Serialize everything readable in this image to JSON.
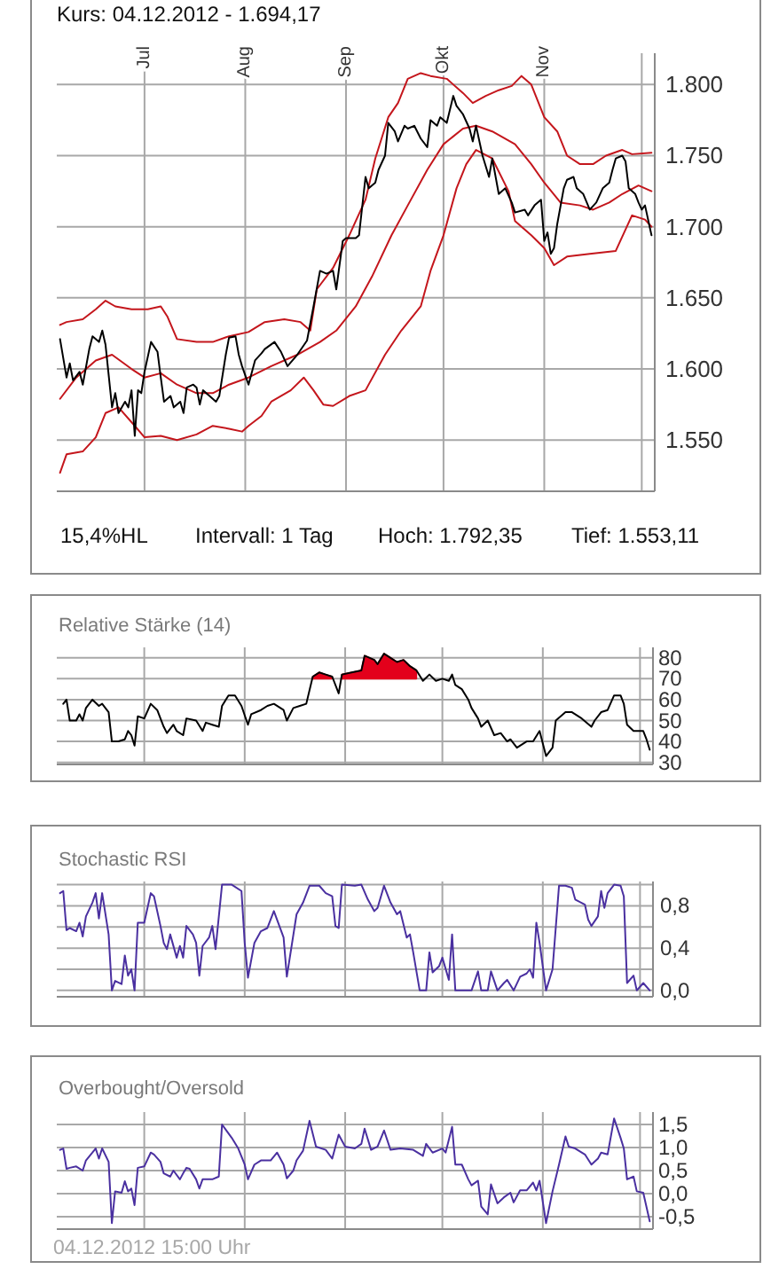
{
  "chart_data": [
    {
      "type": "line",
      "title": "Kurs: 04.12.2012 - 1.694,17",
      "xlim": [
        "2012-06-04",
        "2012-12-05"
      ],
      "xticks": [
        {
          "value": "2012-07-01",
          "label": "Jul"
        },
        {
          "value": "2012-08-01",
          "label": "Aug"
        },
        {
          "value": "2012-09-01",
          "label": "Sep"
        },
        {
          "value": "2012-10-01",
          "label": "Okt"
        },
        {
          "value": "2012-11-01",
          "label": "Nov"
        },
        {
          "value": "2012-12-01",
          "label": null
        }
      ],
      "ylim": [
        1514,
        1822
      ],
      "yticks": [
        {
          "value": 1550,
          "label": "1.550"
        },
        {
          "value": 1600,
          "label": "1.600"
        },
        {
          "value": 1650,
          "label": "1.650"
        },
        {
          "value": 1700,
          "label": "1.700"
        },
        {
          "value": 1750,
          "label": "1.750"
        },
        {
          "value": 1800,
          "label": "1.800"
        }
      ],
      "grid": true,
      "series": [
        {
          "color": "#c4161c",
          "x": [
            "2012-06-05",
            "2012-06-07",
            "2012-06-12",
            "2012-06-16",
            "2012-06-19",
            "2012-06-22",
            "2012-06-27",
            "2012-07-02",
            "2012-07-06",
            "2012-07-08",
            "2012-07-11",
            "2012-07-17",
            "2012-07-22",
            "2012-07-27",
            "2012-08-02",
            "2012-08-07",
            "2012-08-13",
            "2012-08-18",
            "2012-08-21",
            "2012-08-23",
            "2012-08-28",
            "2012-09-02",
            "2012-09-07",
            "2012-09-10",
            "2012-09-14",
            "2012-09-17",
            "2012-09-20",
            "2012-09-24",
            "2012-09-27",
            "2012-10-02",
            "2012-10-07",
            "2012-10-10",
            "2012-10-14",
            "2012-10-18",
            "2012-10-22",
            "2012-10-25",
            "2012-10-28",
            "2012-11-01",
            "2012-11-05",
            "2012-11-08",
            "2012-11-12",
            "2012-11-16",
            "2012-11-20",
            "2012-11-25",
            "2012-11-28",
            "2012-12-04"
          ],
          "values": [
            1631,
            1633,
            1635,
            1642,
            1648,
            1644,
            1642,
            1642,
            1644,
            1637,
            1621,
            1619,
            1619,
            1623,
            1626,
            1633,
            1635,
            1633,
            1627,
            1656,
            1671,
            1694,
            1719,
            1748,
            1777,
            1787,
            1804,
            1808,
            1806,
            1804,
            1794,
            1787,
            1792,
            1796,
            1799,
            1806,
            1800,
            1777,
            1767,
            1750,
            1744,
            1744,
            1750,
            1754,
            1751,
            1752
          ]
        },
        {
          "color": "#c4161c",
          "x": [
            "2012-06-05",
            "2012-06-10",
            "2012-06-16",
            "2012-06-21",
            "2012-06-27",
            "2012-07-01",
            "2012-07-06",
            "2012-07-11",
            "2012-07-17",
            "2012-07-22",
            "2012-07-27",
            "2012-08-02",
            "2012-08-09",
            "2012-08-17",
            "2012-08-24",
            "2012-08-29",
            "2012-09-04",
            "2012-09-09",
            "2012-09-15",
            "2012-09-20",
            "2012-09-26",
            "2012-10-01",
            "2012-10-07",
            "2012-10-11",
            "2012-10-16",
            "2012-10-23",
            "2012-10-28",
            "2012-11-01",
            "2012-11-06",
            "2012-11-12",
            "2012-11-16",
            "2012-11-21",
            "2012-11-25",
            "2012-11-30",
            "2012-12-04"
          ],
          "values": [
            1579,
            1594,
            1606,
            1610,
            1600,
            1594,
            1597,
            1589,
            1583,
            1583,
            1589,
            1594,
            1602,
            1610,
            1619,
            1627,
            1644,
            1665,
            1694,
            1715,
            1740,
            1758,
            1769,
            1771,
            1767,
            1758,
            1744,
            1731,
            1717,
            1715,
            1712,
            1717,
            1723,
            1729,
            1725
          ]
        },
        {
          "color": "#c4161c",
          "x": [
            "2012-06-05",
            "2012-06-07",
            "2012-06-12",
            "2012-06-16",
            "2012-06-19",
            "2012-06-23",
            "2012-06-28",
            "2012-07-01",
            "2012-07-06",
            "2012-07-11",
            "2012-07-17",
            "2012-07-22",
            "2012-07-27",
            "2012-07-31",
            "2012-08-02",
            "2012-08-06",
            "2012-08-09",
            "2012-08-15",
            "2012-08-19",
            "2012-08-22",
            "2012-08-25",
            "2012-08-28",
            "2012-09-02",
            "2012-09-07",
            "2012-09-13",
            "2012-09-18",
            "2012-09-24",
            "2012-09-27",
            "2012-10-01",
            "2012-10-05",
            "2012-10-08",
            "2012-10-11",
            "2012-10-16",
            "2012-10-21",
            "2012-10-23",
            "2012-10-28",
            "2012-11-01",
            "2012-11-04",
            "2012-11-08",
            "2012-11-15",
            "2012-11-23",
            "2012-11-26",
            "2012-11-28",
            "2012-12-02",
            "2012-12-04"
          ],
          "values": [
            1527,
            1540,
            1542,
            1552,
            1569,
            1573,
            1560,
            1552,
            1553,
            1550,
            1554,
            1560,
            1558,
            1556,
            1560,
            1567,
            1577,
            1585,
            1594,
            1585,
            1575,
            1574,
            1581,
            1585,
            1610,
            1627,
            1644,
            1669,
            1694,
            1727,
            1744,
            1754,
            1748,
            1725,
            1704,
            1694,
            1685,
            1673,
            1679,
            1681,
            1683,
            1698,
            1708,
            1705,
            1700
          ]
        },
        {
          "color": "#000000",
          "x": [
            "2012-06-05",
            "2012-06-07",
            "2012-06-08",
            "2012-06-09",
            "2012-06-11",
            "2012-06-12",
            "2012-06-14",
            "2012-06-15",
            "2012-06-17",
            "2012-06-18",
            "2012-06-19",
            "2012-06-21",
            "2012-06-22",
            "2012-06-23",
            "2012-06-25",
            "2012-06-26",
            "2012-06-27",
            "2012-06-28",
            "2012-06-29",
            "2012-06-30",
            "2012-07-01",
            "2012-07-03",
            "2012-07-05",
            "2012-07-06",
            "2012-07-07",
            "2012-07-09",
            "2012-07-10",
            "2012-07-12",
            "2012-07-13",
            "2012-07-14",
            "2012-07-16",
            "2012-07-17",
            "2012-07-18",
            "2012-07-19",
            "2012-07-21",
            "2012-07-23",
            "2012-07-24",
            "2012-07-26",
            "2012-07-27",
            "2012-07-29",
            "2012-07-30",
            "2012-07-31",
            "2012-08-02",
            "2012-08-04",
            "2012-08-06",
            "2012-08-07",
            "2012-08-10",
            "2012-08-12",
            "2012-08-14",
            "2012-08-17",
            "2012-08-20",
            "2012-08-22",
            "2012-08-24",
            "2012-08-26",
            "2012-08-28",
            "2012-08-29",
            "2012-08-31",
            "2012-09-01",
            "2012-09-04",
            "2012-09-05",
            "2012-09-07",
            "2012-09-08",
            "2012-09-10",
            "2012-09-11",
            "2012-09-13",
            "2012-09-14",
            "2012-09-16",
            "2012-09-17",
            "2012-09-19",
            "2012-09-20",
            "2012-09-22",
            "2012-09-24",
            "2012-09-26",
            "2012-09-27",
            "2012-09-29",
            "2012-09-30",
            "2012-10-02",
            "2012-10-04",
            "2012-10-05",
            "2012-10-07",
            "2012-10-09",
            "2012-10-10",
            "2012-10-11",
            "2012-10-13",
            "2012-10-15",
            "2012-10-16",
            "2012-10-18",
            "2012-10-20",
            "2012-10-22",
            "2012-10-23",
            "2012-10-26",
            "2012-10-27",
            "2012-10-29",
            "2012-10-31",
            "2012-11-01",
            "2012-11-02",
            "2012-11-03",
            "2012-11-04",
            "2012-11-05",
            "2012-11-07",
            "2012-11-08",
            "2012-11-10",
            "2012-11-11",
            "2012-11-13",
            "2012-11-15",
            "2012-11-17",
            "2012-11-19",
            "2012-11-21",
            "2012-11-22",
            "2012-11-23",
            "2012-11-25",
            "2012-11-26",
            "2012-11-27",
            "2012-11-29",
            "2012-11-30",
            "2012-12-01",
            "2012-12-02",
            "2012-12-04"
          ],
          "values": [
            1621,
            1594,
            1604,
            1592,
            1598,
            1589,
            1614,
            1623,
            1619,
            1627,
            1617,
            1573,
            1583,
            1569,
            1577,
            1573,
            1585,
            1553,
            1585,
            1583,
            1598,
            1619,
            1612,
            1594,
            1577,
            1581,
            1573,
            1577,
            1569,
            1587,
            1589,
            1587,
            1575,
            1585,
            1581,
            1577,
            1581,
            1610,
            1622,
            1623,
            1610,
            1602,
            1589,
            1606,
            1611,
            1614,
            1619,
            1612,
            1602,
            1610,
            1620,
            1644,
            1669,
            1667,
            1669,
            1656,
            1690,
            1692,
            1692,
            1694,
            1735,
            1727,
            1731,
            1740,
            1750,
            1773,
            1767,
            1760,
            1771,
            1769,
            1771,
            1762,
            1756,
            1775,
            1771,
            1777,
            1773,
            1792,
            1785,
            1779,
            1769,
            1760,
            1771,
            1750,
            1735,
            1748,
            1723,
            1727,
            1717,
            1710,
            1712,
            1708,
            1715,
            1719,
            1690,
            1696,
            1681,
            1685,
            1702,
            1727,
            1733,
            1735,
            1727,
            1723,
            1712,
            1717,
            1727,
            1731,
            1740,
            1748,
            1750,
            1746,
            1727,
            1723,
            1717,
            1712,
            1715,
            1694
          ]
        }
      ],
      "annotations": [
        "15,4%HL",
        "Intervall: 1 Tag",
        "Hoch: 1.792,35",
        "Tief: 1.553,11"
      ]
    },
    {
      "type": "line",
      "title": "Relative Stärke (14)",
      "tick_labels": "y",
      "xlim": [
        "2012-06-04",
        "2012-12-05"
      ],
      "xticks": [
        {
          "value": "2012-07-01",
          "label": null
        },
        {
          "value": "2012-08-01",
          "label": null
        },
        {
          "value": "2012-09-01",
          "label": null
        },
        {
          "value": "2012-10-01",
          "label": null
        },
        {
          "value": "2012-11-01",
          "label": null
        },
        {
          "value": "2012-12-01",
          "label": null
        }
      ],
      "ylim": [
        29,
        85
      ],
      "yticks": [
        30,
        40,
        50,
        60,
        70,
        80
      ],
      "grid": true,
      "series": [
        {
          "color": "#000000",
          "x": [
            "2012-06-06",
            "2012-06-07",
            "2012-06-08",
            "2012-06-10",
            "2012-06-11",
            "2012-06-12",
            "2012-06-13",
            "2012-06-15",
            "2012-06-17",
            "2012-06-18",
            "2012-06-20",
            "2012-06-21",
            "2012-06-23",
            "2012-06-25",
            "2012-06-26",
            "2012-06-27",
            "2012-06-28",
            "2012-06-29",
            "2012-07-01",
            "2012-07-03",
            "2012-07-05",
            "2012-07-07",
            "2012-07-08",
            "2012-07-10",
            "2012-07-11",
            "2012-07-13",
            "2012-07-14",
            "2012-07-17",
            "2012-07-19",
            "2012-07-20",
            "2012-07-22",
            "2012-07-24",
            "2012-07-25",
            "2012-07-27",
            "2012-07-29",
            "2012-07-31",
            "2012-08-02",
            "2012-08-03",
            "2012-08-06",
            "2012-08-08",
            "2012-08-10",
            "2012-08-13",
            "2012-08-14",
            "2012-08-16",
            "2012-08-18",
            "2012-08-20",
            "2012-08-22",
            "2012-08-24",
            "2012-08-26",
            "2012-08-28",
            "2012-08-30",
            "2012-08-31",
            "2012-09-03",
            "2012-09-06",
            "2012-09-07",
            "2012-09-10",
            "2012-09-11",
            "2012-09-13",
            "2012-09-15",
            "2012-09-17",
            "2012-09-19",
            "2012-09-21",
            "2012-09-23",
            "2012-09-25",
            "2012-09-27",
            "2012-09-29",
            "2012-10-01",
            "2012-10-03",
            "2012-10-04",
            "2012-10-05",
            "2012-10-07",
            "2012-10-09",
            "2012-10-10",
            "2012-10-12",
            "2012-10-13",
            "2012-10-15",
            "2012-10-17",
            "2012-10-19",
            "2012-10-21",
            "2012-10-22",
            "2012-10-24",
            "2012-10-27",
            "2012-10-29",
            "2012-10-31",
            "2012-11-02",
            "2012-11-04",
            "2012-11-05",
            "2012-11-08",
            "2012-11-10",
            "2012-11-13",
            "2012-11-16",
            "2012-11-17",
            "2012-11-19",
            "2012-11-21",
            "2012-11-23",
            "2012-11-25",
            "2012-11-26",
            "2012-11-27",
            "2012-11-29",
            "2012-12-02",
            "2012-12-03",
            "2012-12-04"
          ],
          "values": [
            58,
            60,
            50,
            50,
            53,
            50,
            56,
            60,
            57,
            58,
            54,
            40,
            40,
            41,
            45,
            43,
            38,
            52,
            51,
            58,
            55,
            47,
            44,
            48,
            45,
            43,
            51,
            50,
            45,
            49,
            48,
            47,
            57,
            62,
            62,
            57,
            48,
            53,
            55,
            57,
            58,
            55,
            50,
            56,
            57,
            58,
            71,
            73,
            72,
            71,
            63,
            72,
            73,
            74,
            81,
            79,
            77,
            82,
            80,
            78,
            79,
            76,
            74,
            69,
            72,
            69,
            70,
            69,
            72,
            67,
            65,
            60,
            56,
            51,
            47,
            50,
            43,
            44,
            40,
            41,
            37,
            40,
            40,
            45,
            33,
            37,
            50,
            54,
            54,
            51,
            47,
            50,
            54,
            55,
            62,
            62,
            58,
            48,
            45,
            45,
            41,
            36
          ],
          "lower": [
            null,
            null,
            null,
            null,
            null,
            null,
            null,
            null,
            null,
            null,
            null,
            null,
            null,
            null,
            null,
            null,
            null,
            null,
            null,
            null,
            null,
            null,
            null,
            null,
            null,
            null,
            null,
            null,
            null,
            null,
            null,
            null,
            null,
            null,
            null,
            null,
            null,
            null,
            null,
            null,
            null,
            null,
            null,
            null,
            null,
            null,
            70,
            70,
            70,
            70,
            null,
            70,
            70,
            70,
            70,
            70,
            70,
            70,
            70,
            70,
            70,
            70,
            70,
            null,
            null,
            null,
            null,
            null,
            null,
            null,
            null,
            null,
            null,
            null,
            null,
            null,
            null,
            null,
            null,
            null,
            null,
            null,
            null,
            null,
            null,
            null,
            null,
            null,
            null,
            null,
            null,
            null,
            null,
            null,
            null,
            null,
            null,
            null,
            null,
            null,
            null,
            null
          ],
          "upper": [
            null,
            null,
            null,
            null,
            null,
            null,
            null,
            null,
            null,
            null,
            null,
            null,
            null,
            null,
            null,
            null,
            null,
            null,
            null,
            null,
            null,
            null,
            null,
            null,
            null,
            null,
            null,
            null,
            null,
            null,
            null,
            null,
            null,
            null,
            null,
            null,
            null,
            null,
            null,
            null,
            null,
            null,
            null,
            null,
            null,
            null,
            71,
            73,
            72,
            71,
            null,
            72,
            73,
            74,
            81,
            79,
            77,
            82,
            80,
            78,
            79,
            76,
            74,
            null,
            null,
            null,
            null,
            null,
            null,
            null,
            null,
            null,
            null,
            null,
            null,
            null,
            null,
            null,
            null,
            null,
            null,
            null,
            null,
            null,
            null,
            null,
            null,
            null,
            null,
            null,
            null,
            null,
            null,
            null,
            null,
            null,
            null,
            null,
            null,
            null,
            null,
            null
          ]
        }
      ]
    },
    {
      "type": "line",
      "title": "Stochastic RSI",
      "tick_labels": "y",
      "xlim": [
        "2012-06-04",
        "2012-12-05"
      ],
      "xticks": [
        {
          "value": "2012-07-01",
          "label": null
        },
        {
          "value": "2012-08-01",
          "label": null
        },
        {
          "value": "2012-09-01",
          "label": null
        },
        {
          "value": "2012-10-01",
          "label": null
        },
        {
          "value": "2012-11-01",
          "label": null
        },
        {
          "value": "2012-12-01",
          "label": null
        }
      ],
      "ylim": [
        -0.06,
        1.03
      ],
      "yticks": [
        {
          "value": 0,
          "label": "0,0"
        },
        {
          "value": 0.2,
          "label": null
        },
        {
          "value": 0.4,
          "label": "0,4"
        },
        {
          "value": 0.6,
          "label": null
        },
        {
          "value": 0.8,
          "label": "0,8"
        },
        {
          "value": 1,
          "label": null
        }
      ],
      "grid": true,
      "series": [
        {
          "color": "#4a30a0",
          "x": [
            "2012-06-05",
            "2012-06-06",
            "2012-06-07",
            "2012-06-08",
            "2012-06-10",
            "2012-06-11",
            "2012-06-12",
            "2012-06-13",
            "2012-06-15",
            "2012-06-16",
            "2012-06-17",
            "2012-06-18",
            "2012-06-20",
            "2012-06-21",
            "2012-06-22",
            "2012-06-24",
            "2012-06-25",
            "2012-06-26",
            "2012-06-27",
            "2012-06-28",
            "2012-06-29",
            "2012-07-01",
            "2012-07-03",
            "2012-07-04",
            "2012-07-06",
            "2012-07-07",
            "2012-07-08",
            "2012-07-09",
            "2012-07-11",
            "2012-07-12",
            "2012-07-13",
            "2012-07-14",
            "2012-07-16",
            "2012-07-17",
            "2012-07-18",
            "2012-07-19",
            "2012-07-21",
            "2012-07-22",
            "2012-07-23",
            "2012-07-25",
            "2012-07-28",
            "2012-07-31",
            "2012-08-01",
            "2012-08-02",
            "2012-08-04",
            "2012-08-06",
            "2012-08-08",
            "2012-08-10",
            "2012-08-13",
            "2012-08-14",
            "2012-08-17",
            "2012-08-19",
            "2012-08-21",
            "2012-08-24",
            "2012-08-26",
            "2012-08-28",
            "2012-08-29",
            "2012-08-30",
            "2012-08-31",
            "2012-09-04",
            "2012-09-06",
            "2012-09-08",
            "2012-09-10",
            "2012-09-11",
            "2012-09-13",
            "2012-09-15",
            "2012-09-17",
            "2012-09-18",
            "2012-09-20",
            "2012-09-21",
            "2012-09-22",
            "2012-09-24",
            "2012-09-26",
            "2012-09-27",
            "2012-09-28",
            "2012-09-30",
            "2012-10-01",
            "2012-10-03",
            "2012-10-04",
            "2012-10-05",
            "2012-10-10",
            "2012-10-12",
            "2012-10-13",
            "2012-10-15",
            "2012-10-16",
            "2012-10-18",
            "2012-10-20",
            "2012-10-21",
            "2012-10-23",
            "2012-10-25",
            "2012-10-27",
            "2012-10-28",
            "2012-10-29",
            "2012-10-30",
            "2012-10-31",
            "2012-11-02",
            "2012-11-04",
            "2012-11-06",
            "2012-11-08",
            "2012-11-10",
            "2012-11-11",
            "2012-11-14",
            "2012-11-15",
            "2012-11-16",
            "2012-11-18",
            "2012-11-19",
            "2012-11-20",
            "2012-11-21",
            "2012-11-23",
            "2012-11-25",
            "2012-11-26",
            "2012-11-27",
            "2012-11-29",
            "2012-11-30",
            "2012-12-02",
            "2012-12-04"
          ],
          "values": [
            0.92,
            0.94,
            0.57,
            0.59,
            0.56,
            0.64,
            0.51,
            0.7,
            0.83,
            0.92,
            0.68,
            0.92,
            0.53,
            0,
            0.09,
            0.06,
            0.33,
            0.14,
            0.2,
            0,
            0.64,
            0.64,
            0.92,
            0.89,
            0.61,
            0.45,
            0.39,
            0.53,
            0.31,
            0.42,
            0.31,
            0.61,
            0.53,
            0.45,
            0.14,
            0.42,
            0.5,
            0.61,
            0.39,
            1,
            1,
            0.94,
            0.45,
            0.12,
            0.45,
            0.56,
            0.59,
            0.75,
            0.5,
            0.13,
            0.72,
            0.83,
            0.99,
            0.99,
            0.92,
            0.89,
            0.61,
            0.59,
            1,
            0.99,
            1,
            0.86,
            0.75,
            0.78,
            0.99,
            0.83,
            0.72,
            0.75,
            0.5,
            0.53,
            0.36,
            0,
            0,
            0.36,
            0.17,
            0.23,
            0.31,
            0.1,
            0.53,
            0,
            0,
            0.18,
            0,
            0,
            0.18,
            0,
            0.07,
            0.1,
            0,
            0.13,
            0.16,
            0.2,
            0.12,
            0.64,
            0.45,
            0,
            0.2,
            0.99,
            0.99,
            0.97,
            0.86,
            0.81,
            0.67,
            0.61,
            0.7,
            0.94,
            0.78,
            0.92,
            1,
            0.99,
            0.89,
            0.07,
            0.14,
            0,
            0.07,
            0
          ]
        }
      ]
    },
    {
      "type": "line",
      "title": "Overbought/Oversold",
      "tick_labels": "y",
      "xlim": [
        "2012-06-04",
        "2012-12-05"
      ],
      "xticks": [
        {
          "value": "2012-07-01",
          "label": null
        },
        {
          "value": "2012-08-01",
          "label": null
        },
        {
          "value": "2012-09-01",
          "label": null
        },
        {
          "value": "2012-10-01",
          "label": null
        },
        {
          "value": "2012-11-01",
          "label": null
        },
        {
          "value": "2012-12-01",
          "label": null
        }
      ],
      "ylim": [
        -0.77,
        1.77
      ],
      "yticks": [
        {
          "value": -0.5,
          "label": "-0,5"
        },
        {
          "value": 0,
          "label": "0,0"
        },
        {
          "value": 0.5,
          "label": "0,5"
        },
        {
          "value": 1,
          "label": "1,0"
        },
        {
          "value": 1.5,
          "label": "1,5"
        }
      ],
      "grid": true,
      "series": [
        {
          "color": "#4a30a0",
          "x": [
            "2012-06-05",
            "2012-06-06",
            "2012-06-07",
            "2012-06-08",
            "2012-06-10",
            "2012-06-12",
            "2012-06-13",
            "2012-06-15",
            "2012-06-16",
            "2012-06-17",
            "2012-06-18",
            "2012-06-20",
            "2012-06-21",
            "2012-06-22",
            "2012-06-24",
            "2012-06-25",
            "2012-06-26",
            "2012-06-27",
            "2012-06-28",
            "2012-06-29",
            "2012-07-01",
            "2012-07-03",
            "2012-07-04",
            "2012-07-06",
            "2012-07-07",
            "2012-07-09",
            "2012-07-10",
            "2012-07-12",
            "2012-07-13",
            "2012-07-14",
            "2012-07-15",
            "2012-07-17",
            "2012-07-18",
            "2012-07-19",
            "2012-07-22",
            "2012-07-24",
            "2012-07-25",
            "2012-07-28",
            "2012-07-30",
            "2012-08-01",
            "2012-08-02",
            "2012-08-04",
            "2012-08-06",
            "2012-08-09",
            "2012-08-11",
            "2012-08-13",
            "2012-08-14",
            "2012-08-16",
            "2012-08-17",
            "2012-08-19",
            "2012-08-21",
            "2012-08-23",
            "2012-08-26",
            "2012-08-28",
            "2012-08-30",
            "2012-09-01",
            "2012-09-04",
            "2012-09-06",
            "2012-09-07",
            "2012-09-09",
            "2012-09-11",
            "2012-09-13",
            "2012-09-15",
            "2012-09-18",
            "2012-09-22",
            "2012-09-25",
            "2012-09-26",
            "2012-09-28",
            "2012-10-01",
            "2012-10-02",
            "2012-10-04",
            "2012-10-05",
            "2012-10-07",
            "2012-10-09",
            "2012-10-10",
            "2012-10-12",
            "2012-10-13",
            "2012-10-15",
            "2012-10-16",
            "2012-10-18",
            "2012-10-20",
            "2012-10-22",
            "2012-10-23",
            "2012-10-25",
            "2012-10-27",
            "2012-10-29",
            "2012-10-30",
            "2012-10-31",
            "2012-11-02",
            "2012-11-04",
            "2012-11-06",
            "2012-11-08",
            "2012-11-09",
            "2012-11-11",
            "2012-11-14",
            "2012-11-16",
            "2012-11-18",
            "2012-11-19",
            "2012-11-21",
            "2012-11-23",
            "2012-11-25",
            "2012-11-26",
            "2012-11-27",
            "2012-11-29",
            "2012-11-30",
            "2012-12-02",
            "2012-12-04"
          ],
          "values": [
            0.95,
            0.98,
            0.54,
            0.56,
            0.59,
            0.5,
            0.72,
            0.89,
            0.98,
            0.76,
            0.98,
            0.69,
            -0.64,
            0.05,
            0.02,
            0.27,
            0.05,
            0.11,
            -0.25,
            0.56,
            0.59,
            0.89,
            0.85,
            0.69,
            0.44,
            0.37,
            0.5,
            0.31,
            0.44,
            0.56,
            0.54,
            0.31,
            0.11,
            0.31,
            0.31,
            0.37,
            1.5,
            1.21,
            0.98,
            0.63,
            0.31,
            0.63,
            0.72,
            0.72,
            0.89,
            0.63,
            0.33,
            0.5,
            0.72,
            0.93,
            1.58,
            1.02,
            0.95,
            0.76,
            1.28,
            1.02,
            0.98,
            1.08,
            1.41,
            0.95,
            1.02,
            1.37,
            0.95,
            0.98,
            0.95,
            0.82,
            1.08,
            0.89,
            0.98,
            0.89,
            1.45,
            0.63,
            0.63,
            0.31,
            0.18,
            0.28,
            -0.28,
            -0.45,
            0.2,
            -0.21,
            -0.08,
            0.02,
            -0.19,
            0.07,
            0.07,
            0.24,
            0.07,
            0.28,
            -0.64,
            0.05,
            0.63,
            1.24,
            1.02,
            0.98,
            0.85,
            0.63,
            0.76,
            0.89,
            0.85,
            1.63,
            1.21,
            0.98,
            0.31,
            0.37,
            0.05,
            0.02,
            -0.6
          ]
        }
      ],
      "annotations": [
        "04.12.2012 15:00 Uhr"
      ]
    }
  ]
}
